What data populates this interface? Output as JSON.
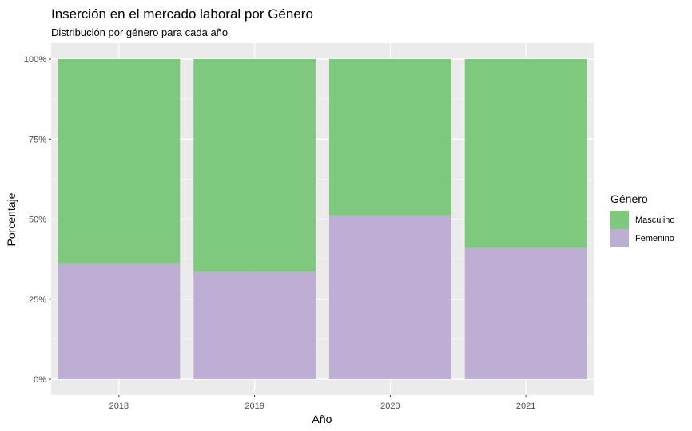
{
  "chart_data": {
    "type": "bar",
    "stacked": true,
    "title": "Inserción en el mercado laboral por Género",
    "subtitle": "Distribución por género para cada año",
    "xlabel": "Año",
    "ylabel": "Porcentaje",
    "categories": [
      "2018",
      "2019",
      "2020",
      "2021"
    ],
    "y_ticks": [
      "0%",
      "25%",
      "50%",
      "75%",
      "100%"
    ],
    "ylim": [
      0,
      1
    ],
    "grid": true,
    "legend": {
      "title": "Género",
      "placement": "right"
    },
    "series": [
      {
        "name": "Femenino",
        "color": "#beaed4",
        "values": [
          0.36,
          0.335,
          0.51,
          0.41
        ]
      },
      {
        "name": "Masculino",
        "color": "#7fc97f",
        "values": [
          0.64,
          0.665,
          0.49,
          0.59
        ]
      }
    ],
    "legend_order": [
      "Masculino",
      "Femenino"
    ],
    "panel_color": "#ebebeb",
    "grid_color": "#ffffff"
  }
}
